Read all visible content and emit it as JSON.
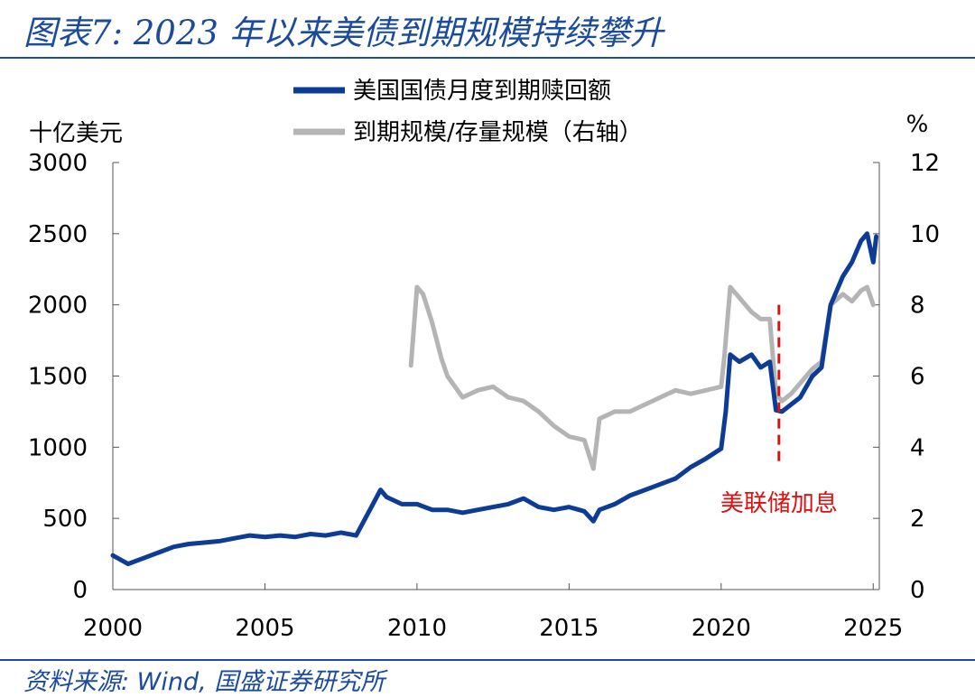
{
  "title": "图表7: 2023 年以来美债到期规模持续攀升",
  "source": "资料来源: Wind, 国盛证券研究所",
  "colors": {
    "title": "#1a4b9c",
    "rule": "#1a4b9c",
    "series1": "#0d3c96",
    "series2": "#b4b4b4",
    "annotation": "#e01010"
  },
  "chart_data": {
    "type": "line",
    "left_axis": {
      "unit": "十亿美元",
      "min": 0,
      "max": 3000,
      "ticks": [
        0,
        500,
        1000,
        1500,
        2000,
        2500,
        3000
      ]
    },
    "right_axis": {
      "unit": "%",
      "min": 0,
      "max": 12,
      "ticks": [
        0,
        2,
        4,
        6,
        8,
        10,
        12
      ]
    },
    "x_axis": {
      "min": 2000,
      "max": 2025.2,
      "ticks": [
        2000,
        2005,
        2010,
        2015,
        2020,
        2025
      ]
    },
    "legend": "top-center",
    "grid": false,
    "series": [
      {
        "name": "美国国债月度到期赎回额",
        "axis": "left",
        "x": [
          2000.0,
          2000.5,
          2001.0,
          2001.5,
          2002.0,
          2002.5,
          2003.0,
          2003.5,
          2004.0,
          2004.5,
          2005.0,
          2005.5,
          2006.0,
          2006.5,
          2007.0,
          2007.5,
          2008.0,
          2008.5,
          2008.8,
          2009.0,
          2009.5,
          2010.0,
          2010.5,
          2011.0,
          2011.5,
          2012.0,
          2012.5,
          2013.0,
          2013.5,
          2014.0,
          2014.5,
          2015.0,
          2015.5,
          2015.8,
          2016.0,
          2016.5,
          2017.0,
          2017.5,
          2018.0,
          2018.5,
          2019.0,
          2019.5,
          2020.0,
          2020.15,
          2020.3,
          2020.6,
          2021.0,
          2021.3,
          2021.6,
          2021.8,
          2022.0,
          2022.3,
          2022.6,
          2023.0,
          2023.3,
          2023.6,
          2024.0,
          2024.3,
          2024.6,
          2024.8,
          2025.0,
          2025.1
        ],
        "y": [
          240,
          180,
          220,
          260,
          300,
          320,
          330,
          340,
          360,
          380,
          370,
          380,
          370,
          390,
          380,
          400,
          380,
          580,
          700,
          650,
          600,
          600,
          560,
          560,
          540,
          560,
          580,
          600,
          640,
          580,
          560,
          580,
          550,
          480,
          560,
          600,
          660,
          700,
          740,
          780,
          860,
          920,
          990,
          1250,
          1650,
          1600,
          1650,
          1560,
          1600,
          1260,
          1250,
          1300,
          1350,
          1500,
          1560,
          2000,
          2200,
          2300,
          2450,
          2500,
          2300,
          2480
        ]
      },
      {
        "name": "到期规模/存量规模（右轴）",
        "axis": "right",
        "x": [
          2009.8,
          2010.0,
          2010.2,
          2010.5,
          2010.8,
          2011.0,
          2011.5,
          2012.0,
          2012.5,
          2013.0,
          2013.5,
          2014.0,
          2014.5,
          2015.0,
          2015.5,
          2015.8,
          2016.0,
          2016.5,
          2017.0,
          2017.5,
          2018.0,
          2018.5,
          2019.0,
          2019.5,
          2020.0,
          2020.1,
          2020.3,
          2020.6,
          2021.0,
          2021.3,
          2021.6,
          2021.8,
          2022.0,
          2022.3,
          2022.6,
          2023.0,
          2023.3,
          2023.6,
          2024.0,
          2024.3,
          2024.6,
          2024.8,
          2025.0
        ],
        "y": [
          6.3,
          8.5,
          8.3,
          7.5,
          6.5,
          6.0,
          5.4,
          5.6,
          5.7,
          5.4,
          5.3,
          5.0,
          4.6,
          4.3,
          4.2,
          3.4,
          4.8,
          5.0,
          5.0,
          5.2,
          5.4,
          5.6,
          5.5,
          5.6,
          5.7,
          6.5,
          8.5,
          8.2,
          7.8,
          7.6,
          7.6,
          5.5,
          5.3,
          5.5,
          5.8,
          6.2,
          6.4,
          8.0,
          8.3,
          8.1,
          8.4,
          8.5,
          8.0
        ]
      }
    ],
    "annotations": [
      {
        "text": "美联储加息",
        "x": 2021.9,
        "style": "dashed-vertical",
        "y_from": 870,
        "y_to": 2000
      }
    ]
  }
}
